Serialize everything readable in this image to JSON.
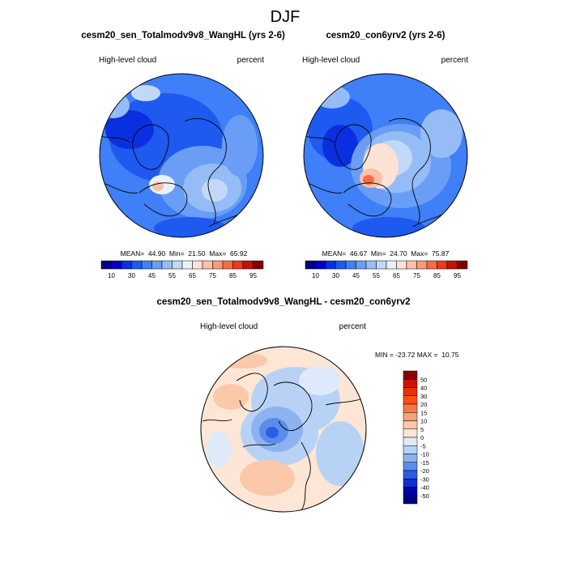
{
  "chart_data": [
    {
      "type": "heatmap",
      "projection": "north-polar-stereographic",
      "title": "cesm20_sen_Totalmodv9v8_WangHL (yrs 2-6)",
      "left_label": "High-level cloud",
      "right_label": "percent",
      "stats": {
        "mean": "44.90",
        "min": "21.50",
        "max": "65.92"
      },
      "stats_text": "MEAN=  44.90  Min=  21.50  Max=  65.92",
      "colorbar": {
        "ticks": [
          "10",
          "30",
          "45",
          "55",
          "65",
          "75",
          "85",
          "95"
        ],
        "levels": [
          10,
          20,
          30,
          40,
          45,
          50,
          55,
          60,
          65,
          70,
          75,
          80,
          85,
          90,
          95
        ],
        "colors": [
          "#000080",
          "#0000c8",
          "#0a2fe0",
          "#1e5af0",
          "#3f7ff7",
          "#6a9ef6",
          "#95bcf6",
          "#c2d8f7",
          "#eaf1fc",
          "#fde2d5",
          "#fbc1a7",
          "#f99b77",
          "#f56c45",
          "#ea3a1a",
          "#c31008",
          "#800000"
        ]
      }
    },
    {
      "type": "heatmap",
      "projection": "north-polar-stereographic",
      "title": "cesm20_con6yrv2 (yrs 2-6)",
      "left_label": "High-level cloud",
      "right_label": "percent",
      "stats": {
        "mean": "46.67",
        "min": "24.70",
        "max": "75.87"
      },
      "stats_text": "MEAN=  46.67  Min=  24.70  Max=  75.87",
      "colorbar": {
        "ticks": [
          "10",
          "30",
          "45",
          "55",
          "65",
          "75",
          "85",
          "95"
        ],
        "levels": [
          10,
          20,
          30,
          40,
          45,
          50,
          55,
          60,
          65,
          70,
          75,
          80,
          85,
          90,
          95
        ],
        "colors": [
          "#000080",
          "#0000c8",
          "#0a2fe0",
          "#1e5af0",
          "#3f7ff7",
          "#6a9ef6",
          "#95bcf6",
          "#c2d8f7",
          "#eaf1fc",
          "#fde2d5",
          "#fbc1a7",
          "#f99b77",
          "#f56c45",
          "#ea3a1a",
          "#c31008",
          "#800000"
        ]
      }
    },
    {
      "type": "heatmap",
      "projection": "north-polar-stereographic",
      "title": "cesm20_sen_Totalmodv9v8_WangHL - cesm20_con6yrv2",
      "left_label": "High-level cloud",
      "right_label": "percent",
      "stats": {
        "min": "-23.72",
        "max": "10.75"
      },
      "stats_text": "MIN = -23.72 MAX =  10.75",
      "colorbar": {
        "ticks": [
          "50",
          "40",
          "30",
          "20",
          "15",
          "10",
          "5",
          "0",
          "-5",
          "-10",
          "-15",
          "-20",
          "-30",
          "-40",
          "-50"
        ],
        "colors": [
          "#8b0000",
          "#c81400",
          "#e63200",
          "#ff5014",
          "#f5784b",
          "#f7a07d",
          "#fbc8aa",
          "#fde6d5",
          "#deeafa",
          "#b8d2f5",
          "#8cb2f0",
          "#5a8cec",
          "#2d5ce6",
          "#0f2fd2",
          "#0000aa",
          "#000080"
        ]
      }
    }
  ],
  "figure": {
    "suptitle": "DJF"
  }
}
